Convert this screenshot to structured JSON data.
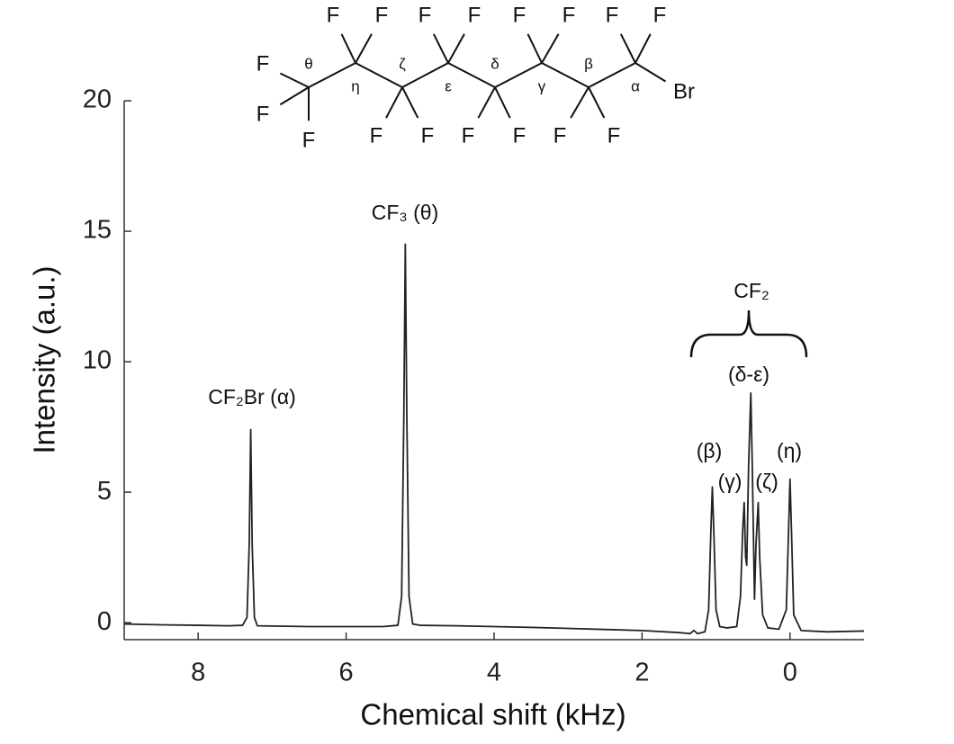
{
  "chart_data": {
    "type": "line",
    "xlabel": "Chemical shift (kHz)",
    "ylabel": "Intensity (a.u.)",
    "xlim": [
      9,
      -1
    ],
    "ylim": [
      -0.65,
      20
    ],
    "xticks": [
      8,
      6,
      4,
      2,
      0
    ],
    "yticks": [
      0,
      5,
      10,
      15,
      20
    ],
    "series": [
      {
        "color": "#222222",
        "x": [
          9,
          8.5,
          8,
          7.6,
          7.4,
          7.34,
          7.31,
          7.29,
          7.27,
          7.24,
          7.2,
          6.5,
          6,
          5.5,
          5.3,
          5.25,
          5.22,
          5.2,
          5.18,
          5.15,
          5.1,
          5.0,
          4.5,
          4,
          3.5,
          3,
          2.5,
          2,
          1.5,
          1.35,
          1.3,
          1.25,
          1.15,
          1.1,
          1.07,
          1.05,
          1.03,
          1.0,
          0.95,
          0.85,
          0.72,
          0.67,
          0.64,
          0.62,
          0.6,
          0.585,
          0.56,
          0.53,
          0.51,
          0.48,
          0.46,
          0.43,
          0.41,
          0.37,
          0.3,
          0.15,
          0.05,
          0.02,
          0.0,
          -0.02,
          -0.05,
          -0.15,
          -0.5,
          -1
        ],
        "values": [
          -0.05,
          -0.08,
          -0.1,
          -0.12,
          -0.1,
          0.2,
          3,
          7.4,
          3,
          0.2,
          -0.12,
          -0.15,
          -0.15,
          -0.15,
          -0.1,
          1,
          8,
          14.5,
          8,
          1,
          -0.05,
          -0.1,
          -0.12,
          -0.15,
          -0.18,
          -0.22,
          -0.26,
          -0.3,
          -0.38,
          -0.42,
          -0.3,
          -0.42,
          -0.35,
          0.5,
          3.5,
          5.2,
          3.5,
          0.5,
          -0.15,
          -0.2,
          -0.15,
          1,
          3.5,
          4.6,
          2.5,
          2.2,
          6,
          8.8,
          6,
          0.9,
          3,
          4.6,
          2.5,
          0.3,
          -0.2,
          -0.25,
          0.5,
          3.5,
          5.5,
          3.5,
          0.3,
          -0.3,
          -0.35,
          -0.32
        ]
      }
    ],
    "annotations": [
      "CF₂Br (α)",
      "CF₃ (θ)",
      "CF₂",
      "(δ-ε)",
      "(β)",
      "(γ)",
      "(ζ)",
      "(η)"
    ]
  },
  "molecule": {
    "atoms": [
      "F",
      "F",
      "F",
      "F",
      "F",
      "F",
      "F",
      "F",
      "F",
      "F",
      "F",
      "F",
      "F",
      "F",
      "F",
      "F",
      "F",
      "Br"
    ],
    "positions": [
      "θ",
      "η",
      "ζ",
      "ε",
      "δ",
      "γ",
      "β",
      "α"
    ]
  }
}
